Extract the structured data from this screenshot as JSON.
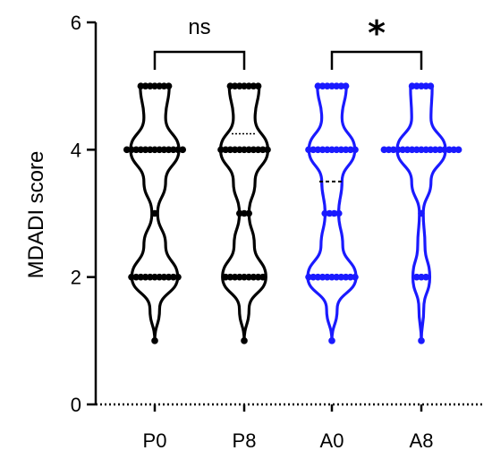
{
  "chart_data": {
    "type": "violin",
    "ylabel": "MDADI score",
    "ylim": [
      0,
      6
    ],
    "yticks": [
      0,
      2,
      4,
      6
    ],
    "grid": false,
    "categories": [
      "P0",
      "P8",
      "A0",
      "A8"
    ],
    "series": [
      {
        "category": "P0",
        "color": "#000000",
        "median": 4,
        "quartiles": [
          2,
          4
        ],
        "median_dotted": false,
        "range": [
          1,
          5
        ],
        "points": [
          {
            "y": 5,
            "count": 7
          },
          {
            "y": 4,
            "count": 13
          },
          {
            "y": 3,
            "count": 1
          },
          {
            "y": 2,
            "count": 11
          },
          {
            "y": 1,
            "count": 1
          }
        ]
      },
      {
        "category": "P8",
        "color": "#000000",
        "median": 4.25,
        "quartiles": [
          2,
          4
        ],
        "median_dotted": true,
        "range": [
          1,
          5
        ],
        "points": [
          {
            "y": 5,
            "count": 7
          },
          {
            "y": 4,
            "count": 11
          },
          {
            "y": 3,
            "count": 3
          },
          {
            "y": 2,
            "count": 9
          },
          {
            "y": 1,
            "count": 1
          }
        ]
      },
      {
        "category": "A0",
        "color": "#1a1aff",
        "median": 3.5,
        "quartiles": [
          2,
          4
        ],
        "median_dotted": false,
        "median_dashed": true,
        "range": [
          1,
          5
        ],
        "points": [
          {
            "y": 5,
            "count": 7
          },
          {
            "y": 4,
            "count": 11
          },
          {
            "y": 3,
            "count": 4
          },
          {
            "y": 2,
            "count": 11
          },
          {
            "y": 1,
            "count": 1
          }
        ]
      },
      {
        "category": "A8",
        "color": "#1a1aff",
        "median": 4,
        "quartiles": [
          2,
          4
        ],
        "median_dotted": false,
        "range": [
          1,
          5
        ],
        "points": [
          {
            "y": 5,
            "count": 5
          },
          {
            "y": 4,
            "count": 17
          },
          {
            "y": 3,
            "count": 1
          },
          {
            "y": 2,
            "count": 3
          },
          {
            "y": 1,
            "count": 1
          }
        ]
      }
    ],
    "annotations": [
      {
        "from": "P0",
        "to": "P8",
        "label": "ns"
      },
      {
        "from": "A0",
        "to": "A8",
        "label": "*"
      }
    ]
  }
}
